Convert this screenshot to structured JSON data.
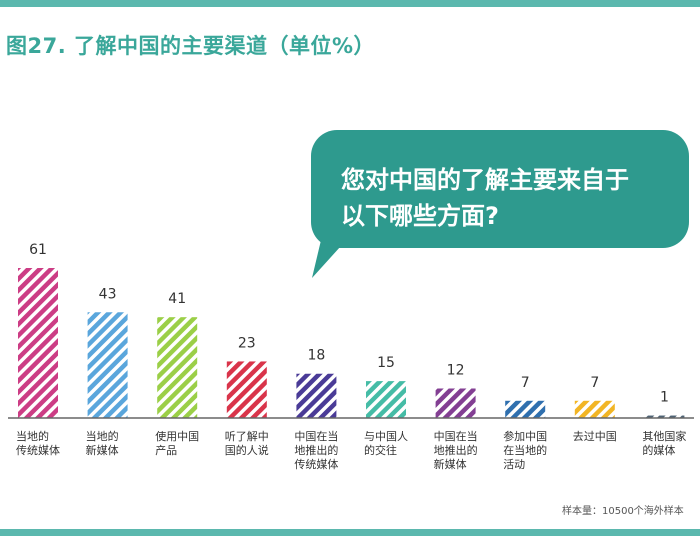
{
  "title": "图27. 了解中国的主要渠道（单位%）",
  "callout": {
    "line1": "您对中国的了解主要来自于",
    "line2": "以下哪些方面?"
  },
  "source_note": "样本量：10500个海外样本",
  "colors": {
    "accent": "#5bb8ae",
    "title": "#3aa79a",
    "bubble": "#2e9a8e"
  },
  "chart_data": {
    "type": "bar",
    "title": "图27. 了解中国的主要渠道（单位%）",
    "xlabel": "",
    "ylabel": "",
    "ylim": [
      0,
      61
    ],
    "grid": false,
    "categories": [
      "当地的\n传统媒体",
      "当地的\n新媒体",
      "使用中国\n产品",
      "听了解中\n国的人说",
      "中国在当\n地推出的\n传统媒体",
      "与中国人\n的交往",
      "中国在当\n地推出的\n新媒体",
      "参加中国\n在当地的\n活动",
      "去过中国",
      "其他国家\n的媒体"
    ],
    "values": [
      61,
      43,
      41,
      23,
      18,
      15,
      12,
      7,
      7,
      1
    ],
    "bar_colors": [
      "#cc3d85",
      "#5aa6dc",
      "#9bcf47",
      "#d9344a",
      "#4a3b97",
      "#45bca6",
      "#833f93",
      "#2f6fae",
      "#f2b524",
      "#4f6374"
    ]
  }
}
